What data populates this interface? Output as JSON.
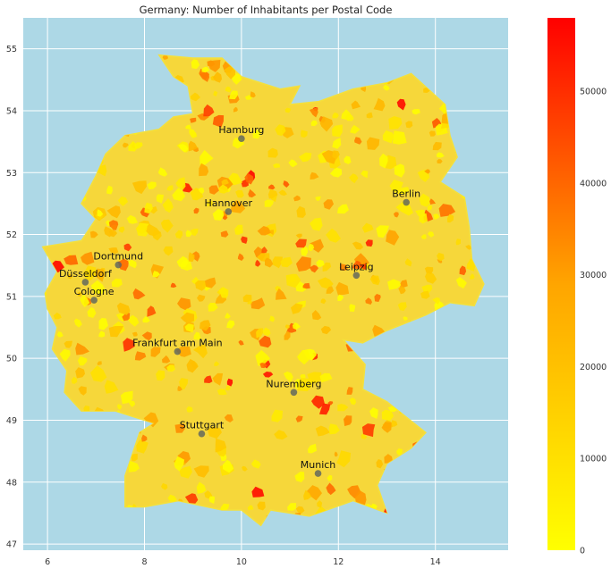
{
  "chart_data": {
    "type": "choropleth-map",
    "title": "Germany: Number of Inhabitants per Postal Code",
    "xlabel": "",
    "ylabel": "",
    "xlim": [
      5.5,
      15.5
    ],
    "ylim": [
      46.9,
      55.5
    ],
    "x_ticks": [
      6,
      8,
      10,
      12,
      14
    ],
    "y_ticks": [
      47,
      48,
      49,
      50,
      51,
      52,
      53,
      54,
      55
    ],
    "grid": true,
    "background_color": "#add8e6",
    "colorbar": {
      "min": 0,
      "max": 58000,
      "ticks": [
        0,
        10000,
        20000,
        30000,
        40000,
        50000
      ],
      "colors": [
        "#ffff00",
        "#ffa500",
        "#ff0000"
      ]
    },
    "cities": [
      {
        "name": "Hamburg",
        "lon": 10.0,
        "lat": 53.55
      },
      {
        "name": "Berlin",
        "lon": 13.4,
        "lat": 52.52
      },
      {
        "name": "Hannover",
        "lon": 9.73,
        "lat": 52.37
      },
      {
        "name": "Dortmund",
        "lon": 7.46,
        "lat": 51.51
      },
      {
        "name": "Düsseldorf",
        "lon": 6.78,
        "lat": 51.23
      },
      {
        "name": "Leipzig",
        "lon": 12.37,
        "lat": 51.34
      },
      {
        "name": "Cologne",
        "lon": 6.96,
        "lat": 50.94
      },
      {
        "name": "Frankfurt am Main",
        "lon": 8.68,
        "lat": 50.11
      },
      {
        "name": "Nuremberg",
        "lon": 11.08,
        "lat": 49.45
      },
      {
        "name": "Stuttgart",
        "lon": 9.18,
        "lat": 48.78
      },
      {
        "name": "Munich",
        "lon": 11.58,
        "lat": 48.14
      }
    ],
    "outline": [
      [
        8.3,
        54.9
      ],
      [
        9.0,
        54.85
      ],
      [
        9.6,
        54.85
      ],
      [
        10.0,
        54.55
      ],
      [
        10.8,
        54.35
      ],
      [
        11.2,
        54.4
      ],
      [
        11.0,
        54.1
      ],
      [
        11.6,
        54.15
      ],
      [
        12.3,
        54.35
      ],
      [
        13.0,
        54.45
      ],
      [
        13.5,
        54.6
      ],
      [
        14.2,
        54.1
      ],
      [
        14.3,
        53.6
      ],
      [
        14.45,
        53.25
      ],
      [
        14.1,
        52.85
      ],
      [
        14.6,
        52.6
      ],
      [
        14.7,
        52.1
      ],
      [
        14.75,
        51.6
      ],
      [
        15.0,
        51.2
      ],
      [
        14.8,
        50.85
      ],
      [
        14.3,
        50.9
      ],
      [
        13.8,
        50.7
      ],
      [
        13.0,
        50.45
      ],
      [
        12.5,
        50.25
      ],
      [
        12.1,
        50.3
      ],
      [
        12.55,
        49.9
      ],
      [
        12.5,
        49.5
      ],
      [
        13.0,
        49.3
      ],
      [
        13.8,
        48.8
      ],
      [
        13.5,
        48.55
      ],
      [
        13.0,
        48.3
      ],
      [
        12.8,
        47.95
      ],
      [
        13.0,
        47.5
      ],
      [
        12.3,
        47.7
      ],
      [
        11.4,
        47.45
      ],
      [
        10.6,
        47.55
      ],
      [
        10.4,
        47.3
      ],
      [
        10.0,
        47.55
      ],
      [
        9.6,
        47.55
      ],
      [
        8.7,
        47.7
      ],
      [
        8.0,
        47.6
      ],
      [
        7.6,
        47.6
      ],
      [
        7.6,
        48.1
      ],
      [
        7.9,
        48.8
      ],
      [
        8.2,
        48.95
      ],
      [
        7.4,
        49.15
      ],
      [
        6.7,
        49.15
      ],
      [
        6.35,
        49.45
      ],
      [
        6.4,
        49.8
      ],
      [
        6.1,
        50.15
      ],
      [
        6.2,
        50.5
      ],
      [
        6.0,
        50.8
      ],
      [
        5.95,
        51.05
      ],
      [
        6.2,
        51.4
      ],
      [
        5.9,
        51.8
      ],
      [
        6.7,
        51.9
      ],
      [
        7.0,
        52.25
      ],
      [
        6.7,
        52.5
      ],
      [
        7.0,
        52.95
      ],
      [
        7.2,
        53.3
      ],
      [
        7.6,
        53.6
      ],
      [
        8.3,
        53.7
      ],
      [
        8.6,
        53.9
      ],
      [
        9.0,
        53.95
      ],
      [
        8.9,
        54.4
      ],
      [
        8.6,
        54.55
      ]
    ]
  }
}
